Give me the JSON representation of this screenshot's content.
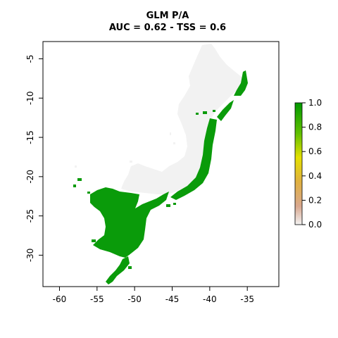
{
  "title": "GLM P/A",
  "subtitle": "AUC = 0.62 - TSS = 0.6",
  "map": {
    "x_ticks": [
      -60,
      -55,
      -50,
      -45,
      -40,
      -35
    ],
    "y_ticks": [
      -5,
      -10,
      -15,
      -20,
      -25,
      -30
    ],
    "x_range": [
      -62.2,
      -30.8
    ],
    "y_range": [
      -34,
      -2.8
    ],
    "colors": {
      "presence": "#0a9b0a",
      "absence": "#f2f2f2",
      "frame": "#000000"
    }
  },
  "legend": {
    "labels": [
      "1.0",
      "0.8",
      "0.6",
      "0.4",
      "0.2",
      "0.0"
    ],
    "min": 0.0,
    "max": 1.0,
    "gradient": [
      "#f2f2f2",
      "#d9a88f",
      "#e0b040",
      "#e5e000",
      "#60c000",
      "#009900"
    ]
  }
}
